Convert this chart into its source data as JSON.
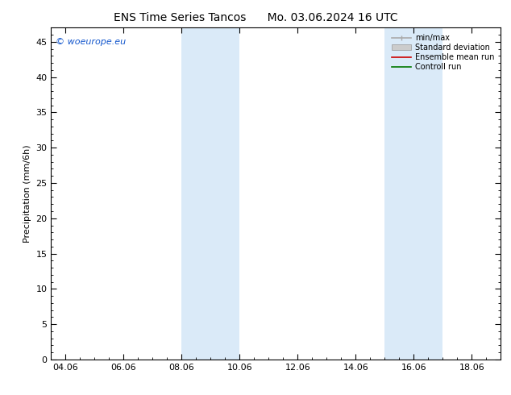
{
  "title": "ENS Time Series Tancos      Mo. 03.06.2024 16 UTC",
  "ylabel": "Precipitation (mm/6h)",
  "ylim": [
    0,
    47
  ],
  "yticks": [
    0,
    5,
    10,
    15,
    20,
    25,
    30,
    35,
    40,
    45
  ],
  "xlim": [
    -0.5,
    15.0
  ],
  "xtick_labels": [
    "04.06",
    "06.06",
    "08.06",
    "10.06",
    "12.06",
    "14.06",
    "16.06",
    "18.06"
  ],
  "xtick_positions": [
    0,
    2,
    4,
    6,
    8,
    10,
    12,
    14
  ],
  "shade_bands": [
    {
      "xmin": 4.0,
      "xmax": 5.0
    },
    {
      "xmin": 5.0,
      "xmax": 6.0
    },
    {
      "xmin": 11.0,
      "xmax": 12.0
    },
    {
      "xmin": 12.0,
      "xmax": 13.0
    }
  ],
  "shade_color": "#daeaf8",
  "background_color": "#ffffff",
  "legend_entries": [
    {
      "label": "min/max",
      "color": "#aaaaaa",
      "lw": 1.2,
      "type": "errbar"
    },
    {
      "label": "Standard deviation",
      "color": "#cccccc",
      "lw": 1.0,
      "type": "patch"
    },
    {
      "label": "Ensemble mean run",
      "color": "#cc0000",
      "lw": 1.2,
      "type": "line"
    },
    {
      "label": "Controll run",
      "color": "#007700",
      "lw": 1.2,
      "type": "line"
    }
  ],
  "watermark": "© woeurope.eu",
  "title_fontsize": 10,
  "label_fontsize": 8,
  "tick_fontsize": 8,
  "legend_fontsize": 7
}
